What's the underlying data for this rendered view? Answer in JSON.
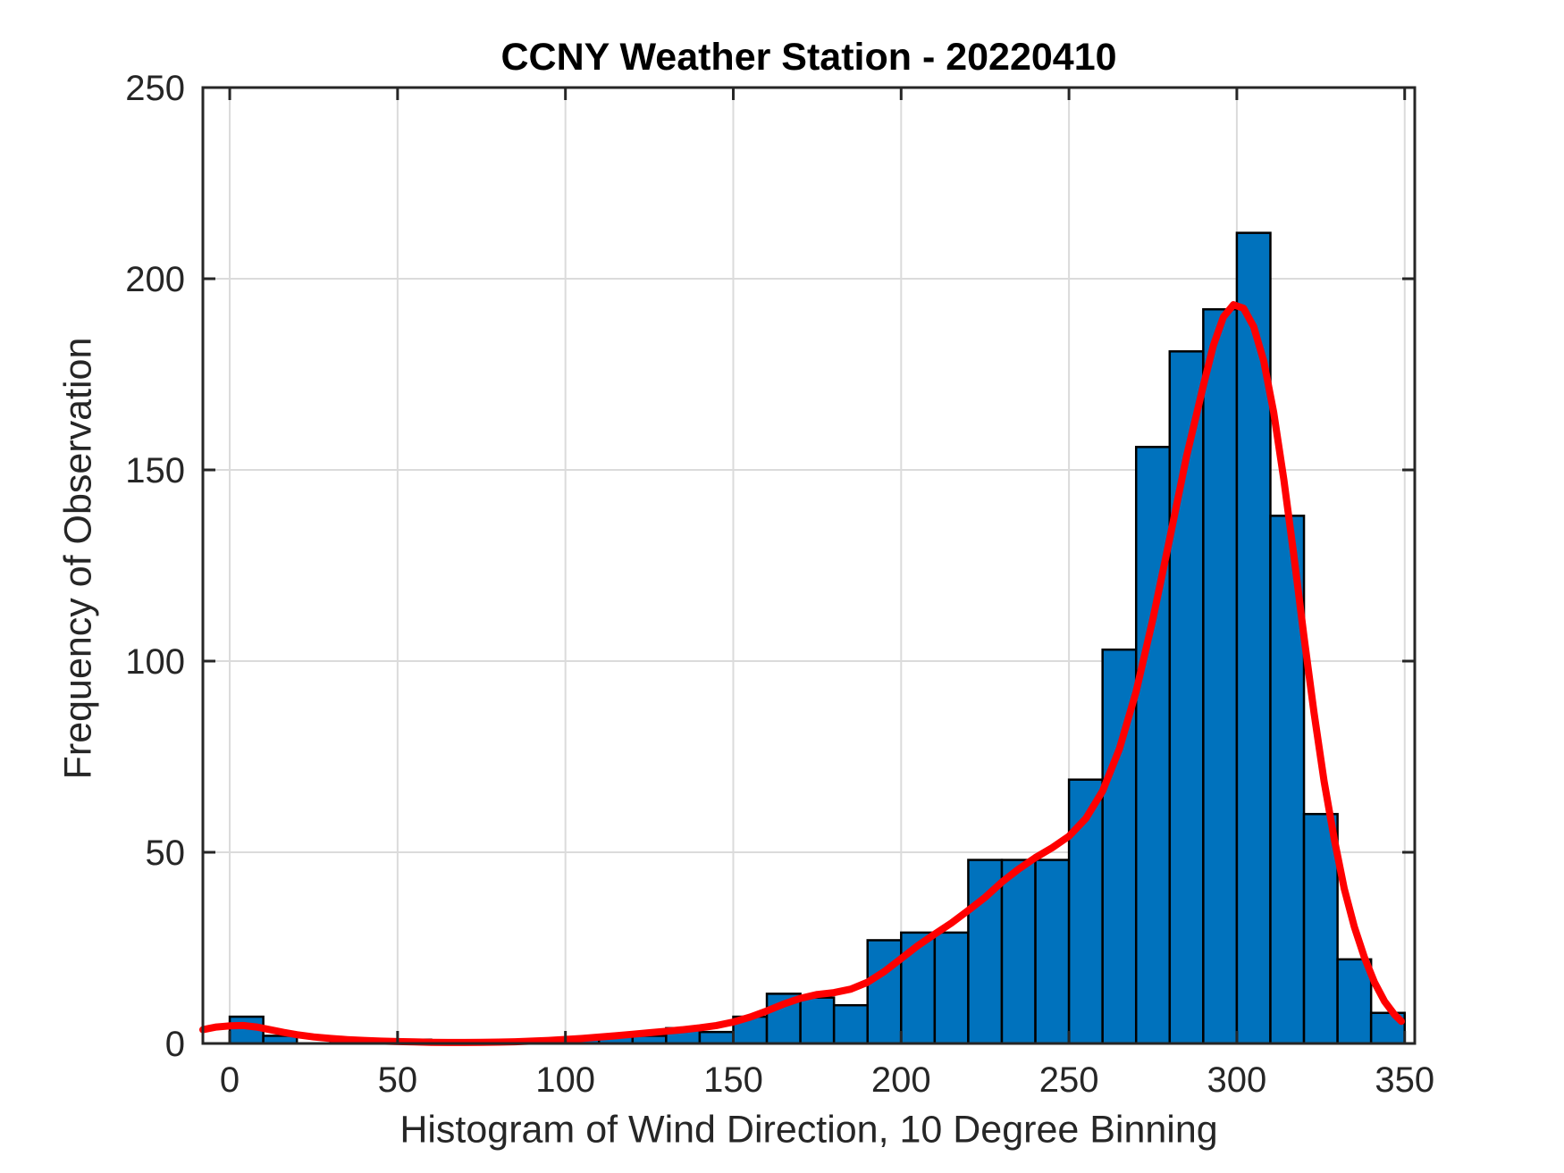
{
  "figure": {
    "title": "CCNY Weather Station - 20220410",
    "background_color": "#ffffff"
  },
  "chart_data": {
    "type": "bar",
    "subtype": "histogram-with-fit-curve",
    "title": "CCNY Weather Station - 20220410",
    "xlabel": "Histogram of Wind Direction, 10 Degree Binning",
    "ylabel": "Frequency of Observation",
    "grid": true,
    "legend": "none",
    "xlim": [
      -8,
      353
    ],
    "ylim": [
      0,
      250
    ],
    "x_ticks": [
      0,
      50,
      100,
      150,
      200,
      250,
      300,
      350
    ],
    "y_ticks": [
      0,
      50,
      100,
      150,
      200,
      250
    ],
    "bin_width": 10,
    "bin_starts": [
      0,
      10,
      20,
      30,
      40,
      50,
      60,
      70,
      80,
      90,
      100,
      110,
      120,
      130,
      140,
      150,
      160,
      170,
      180,
      190,
      200,
      210,
      220,
      230,
      240,
      250,
      260,
      270,
      280,
      290,
      300,
      310,
      320,
      330,
      340
    ],
    "values": [
      7,
      2,
      0,
      1,
      1,
      1,
      0,
      0,
      0,
      1,
      1,
      2,
      2,
      4,
      3,
      7,
      13,
      12,
      10,
      27,
      29,
      29,
      48,
      48,
      48,
      69,
      103,
      156,
      181,
      192,
      212,
      138,
      60,
      22,
      8
    ],
    "series": [
      {
        "name": "wind-direction-histogram",
        "type": "bar",
        "fill": "#0072BD",
        "edge": "#000000"
      },
      {
        "name": "distribution-fit-line",
        "type": "line",
        "color": "#ff0000"
      }
    ],
    "fit_curve_points": [
      [
        -8,
        3.6
      ],
      [
        -4,
        4.3
      ],
      [
        0,
        4.6
      ],
      [
        4,
        4.7
      ],
      [
        8,
        4.3
      ],
      [
        12,
        3.6
      ],
      [
        16,
        2.9
      ],
      [
        20,
        2.3
      ],
      [
        25,
        1.7
      ],
      [
        30,
        1.3
      ],
      [
        35,
        1.0
      ],
      [
        40,
        0.8
      ],
      [
        45,
        0.6
      ],
      [
        50,
        0.5
      ],
      [
        55,
        0.4
      ],
      [
        60,
        0.3
      ],
      [
        65,
        0.25
      ],
      [
        70,
        0.25
      ],
      [
        75,
        0.3
      ],
      [
        80,
        0.35
      ],
      [
        85,
        0.45
      ],
      [
        90,
        0.6
      ],
      [
        95,
        0.8
      ],
      [
        100,
        1.05
      ],
      [
        105,
        1.3
      ],
      [
        110,
        1.65
      ],
      [
        115,
        2.0
      ],
      [
        120,
        2.4
      ],
      [
        125,
        2.8
      ],
      [
        130,
        3.2
      ],
      [
        135,
        3.6
      ],
      [
        140,
        4.1
      ],
      [
        145,
        4.7
      ],
      [
        150,
        5.6
      ],
      [
        155,
        6.9
      ],
      [
        160,
        8.5
      ],
      [
        165,
        10.3
      ],
      [
        170,
        11.8
      ],
      [
        175,
        12.8
      ],
      [
        180,
        13.3
      ],
      [
        185,
        14.2
      ],
      [
        190,
        16.0
      ],
      [
        195,
        18.8
      ],
      [
        200,
        22.2
      ],
      [
        205,
        25.6
      ],
      [
        210,
        28.6
      ],
      [
        215,
        31.5
      ],
      [
        220,
        34.8
      ],
      [
        225,
        38.2
      ],
      [
        230,
        42.2
      ],
      [
        235,
        45.6
      ],
      [
        240,
        48.6
      ],
      [
        245,
        51.2
      ],
      [
        250,
        54.2
      ],
      [
        255,
        58.8
      ],
      [
        260,
        66.0
      ],
      [
        265,
        77.0
      ],
      [
        270,
        92.0
      ],
      [
        275,
        111.0
      ],
      [
        280,
        132.0
      ],
      [
        285,
        153.5
      ],
      [
        290,
        172.0
      ],
      [
        293,
        182.5
      ],
      [
        296,
        190.0
      ],
      [
        299,
        193.2
      ],
      [
        302,
        192.3
      ],
      [
        305,
        187.5
      ],
      [
        308,
        178.5
      ],
      [
        311,
        165.0
      ],
      [
        314,
        147.5
      ],
      [
        317,
        127.5
      ],
      [
        320,
        106.5
      ],
      [
        323,
        86.5
      ],
      [
        326,
        68.5
      ],
      [
        329,
        53.5
      ],
      [
        332,
        40.5
      ],
      [
        335,
        30.5
      ],
      [
        338,
        22.5
      ],
      [
        341,
        16.0
      ],
      [
        344,
        11.0
      ],
      [
        347,
        7.5
      ],
      [
        349,
        5.8
      ]
    ],
    "colors": {
      "bar_fill": "#0072BD",
      "bar_edge": "#000000",
      "curve": "#ff0000",
      "grid": "#dbdbdb",
      "axis": "#262626",
      "tick_text": "#262626",
      "title_text": "#000000"
    }
  }
}
